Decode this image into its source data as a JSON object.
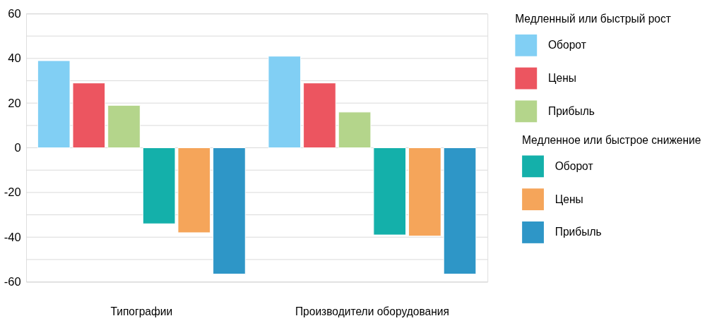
{
  "chart_data": {
    "type": "bar",
    "categories": [
      "Типографии",
      "Производители оборудования"
    ],
    "legend_title": [
      "Медленный или быстрый рост",
      "Медленное или быстрое снижение"
    ],
    "series": [
      {
        "name": "Оборот",
        "color": "#81cff4",
        "values": [
          39,
          41
        ]
      },
      {
        "name": "Цены",
        "color": "#ec5560",
        "values": [
          29,
          29
        ]
      },
      {
        "name": "Прибыль",
        "color": "#b4d58b",
        "values": [
          19,
          16
        ]
      },
      {
        "name": "Оборот",
        "color": "#14b0aa",
        "values": [
          -34,
          -39
        ]
      },
      {
        "name": "Цены",
        "color": "#f5a55a",
        "values": [
          -38,
          -39.5
        ]
      },
      {
        "name": "Прибыль",
        "color": "#2e96c7",
        "values": [
          -56.5,
          -56.5
        ]
      }
    ],
    "ylim": [
      -60,
      60
    ],
    "yticks": [
      -60,
      {
        "value": -50,
        "label": null
      },
      -40,
      {
        "value": -30,
        "label": null
      },
      -20,
      {
        "value": -10,
        "label": null
      },
      0,
      {
        "value": 10,
        "label": null
      },
      20,
      {
        "value": 30,
        "label": null
      },
      40,
      {
        "value": 50,
        "label": null
      },
      60
    ],
    "grid": "y",
    "legend": "right"
  }
}
